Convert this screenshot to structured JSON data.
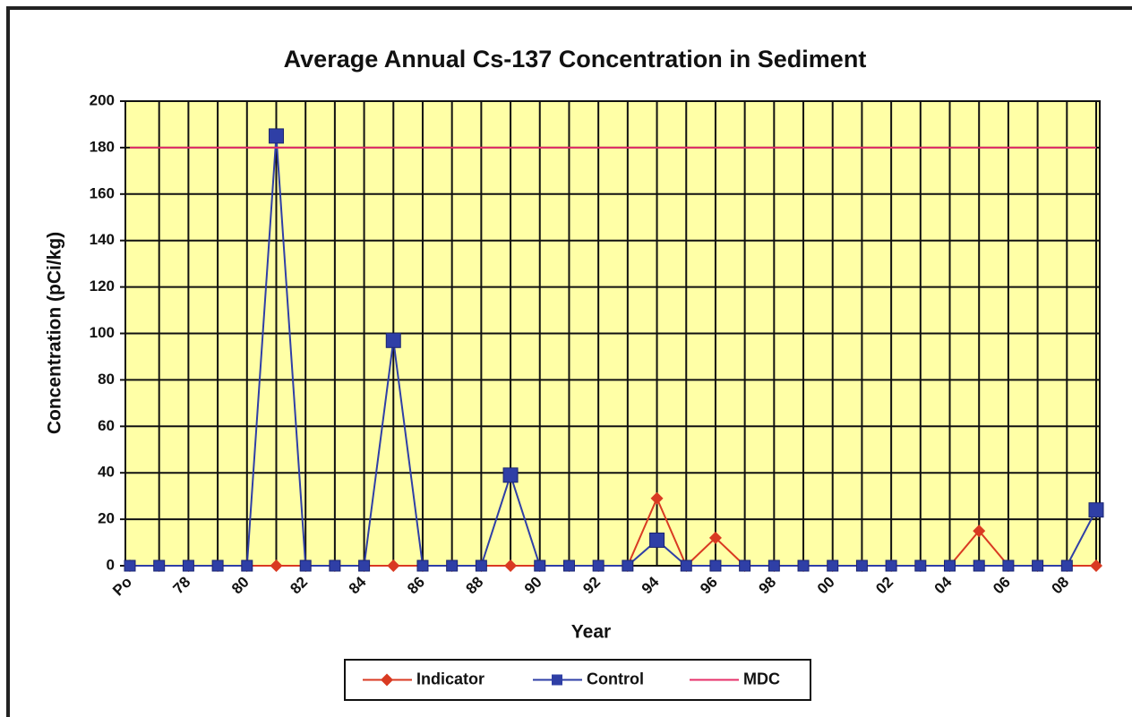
{
  "chart_data": {
    "type": "line",
    "title": "Average Annual Cs-137 Concentration in Sediment",
    "xlabel": "Year",
    "ylabel": "Concentration (pCi/kg)",
    "categories": [
      "Po",
      null,
      "78",
      null,
      "80",
      null,
      "82",
      null,
      "84",
      null,
      "86",
      null,
      "88",
      null,
      "90",
      null,
      "92",
      null,
      "94",
      null,
      "96",
      null,
      "98",
      null,
      "00",
      null,
      "02",
      null,
      "04",
      null,
      "06",
      null,
      "08",
      null
    ],
    "series": [
      {
        "name": "Indicator",
        "color": "#d93a22",
        "marker": "diamond",
        "values": [
          0,
          0,
          0,
          0,
          0,
          0,
          0,
          0,
          0,
          0,
          0,
          0,
          0,
          0,
          0,
          0,
          0,
          0,
          29,
          0,
          12,
          0,
          0,
          0,
          0,
          0,
          0,
          0,
          0,
          15,
          0,
          0,
          0,
          0
        ]
      },
      {
        "name": "Control",
        "color": "#2f3fa6",
        "marker": "square",
        "values": [
          0,
          0,
          0,
          0,
          0,
          185,
          0,
          0,
          0,
          97,
          0,
          0,
          0,
          39,
          0,
          0,
          0,
          0,
          11,
          0,
          0,
          0,
          0,
          0,
          0,
          0,
          0,
          0,
          0,
          0,
          0,
          0,
          0,
          24
        ]
      },
      {
        "name": "MDC",
        "color": "#e6306a",
        "marker": "none",
        "values": [
          180,
          180,
          180,
          180,
          180,
          180,
          180,
          180,
          180,
          180,
          180,
          180,
          180,
          180,
          180,
          180,
          180,
          180,
          180,
          180,
          180,
          180,
          180,
          180,
          180,
          180,
          180,
          180,
          180,
          180,
          180,
          180,
          180,
          180
        ]
      }
    ],
    "ylim": [
      0,
      200
    ],
    "yticks": [
      0,
      20,
      40,
      60,
      80,
      100,
      120,
      140,
      160,
      180,
      200
    ],
    "grid": true,
    "legend": "bottom",
    "plot_background": "#ffffa6"
  }
}
